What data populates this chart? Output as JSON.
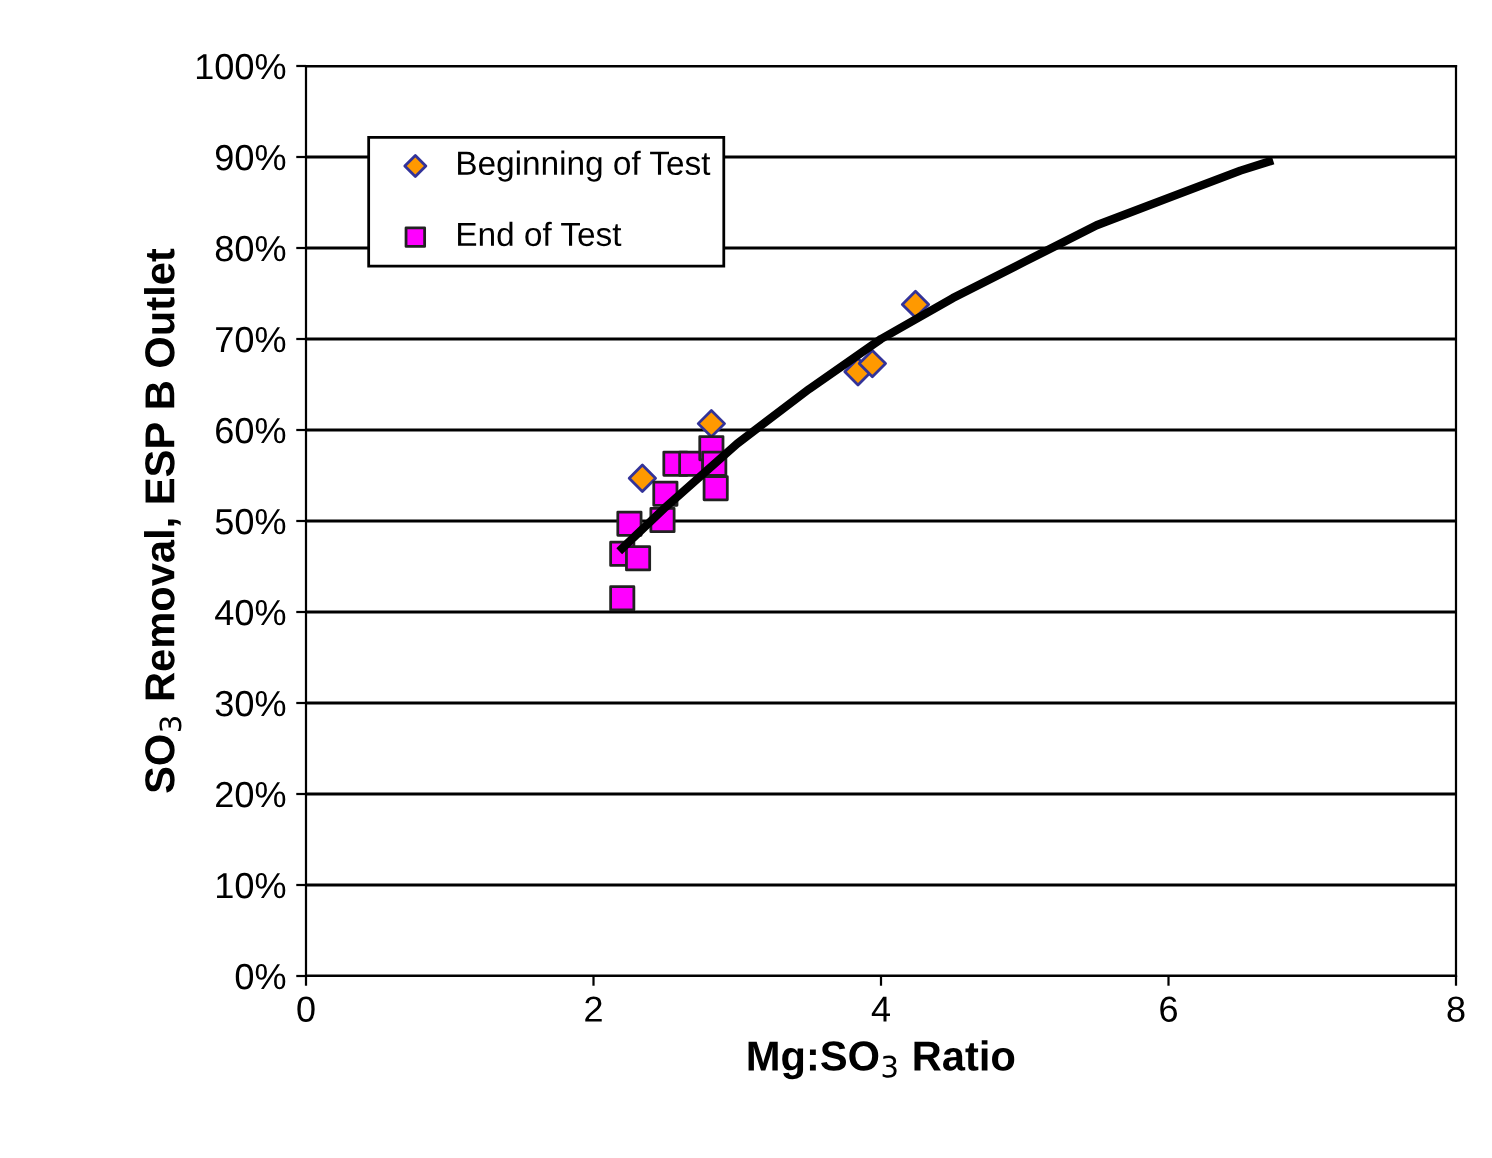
{
  "chart_data": {
    "type": "scatter",
    "xlabel": "Mg:SO$_{3}$ Ratio",
    "ylabel": "SO$_{3}$ Removal, ESP B Outlet",
    "xlim": [
      0,
      8
    ],
    "xticks": [
      0,
      2,
      4,
      6,
      8
    ],
    "ylim": [
      0,
      100
    ],
    "yticks": [
      {
        "value": 0,
        "label": "0%"
      },
      {
        "value": 10,
        "label": "10%"
      },
      {
        "value": 20,
        "label": "20%"
      },
      {
        "value": 30,
        "label": "30%"
      },
      {
        "value": 40,
        "label": "40%"
      },
      {
        "value": 50,
        "label": "50%"
      },
      {
        "value": 60,
        "label": "60%"
      },
      {
        "value": 70,
        "label": "70%"
      },
      {
        "value": 80,
        "label": "80%"
      },
      {
        "value": 90,
        "label": "90%"
      },
      {
        "value": 100,
        "label": "100%"
      }
    ],
    "grid": "y",
    "legend": "top left",
    "series": [
      {
        "name": "Beginning of Test",
        "marker": "diamond",
        "color": "#ff9900",
        "x": [
          2.34,
          2.82,
          3.84,
          3.94,
          4.24
        ],
        "values": [
          54.7,
          60.7,
          66.4,
          67.3,
          73.8
        ]
      },
      {
        "name": "End of Test",
        "marker": "square",
        "color": "#ff00ff",
        "x": [
          2.2,
          2.2,
          2.31,
          2.25,
          2.48,
          2.5,
          2.57,
          2.68,
          2.82,
          2.84,
          2.85
        ],
        "values": [
          41.5,
          46.4,
          45.9,
          49.7,
          50.1,
          53.0,
          56.3,
          56.3,
          58.0,
          56.3,
          53.6
        ]
      },
      {
        "type": "line",
        "color": "#000000",
        "marker": "none",
        "x": [
          2.2,
          2.5,
          3,
          3.5,
          4,
          4.5,
          5,
          5.5,
          6,
          6.5,
          6.7
        ],
        "values": [
          47,
          51.5,
          58.5,
          64.5,
          70,
          74.5,
          78.5,
          82.5,
          85.5,
          88.5,
          89.5
        ]
      }
    ]
  }
}
